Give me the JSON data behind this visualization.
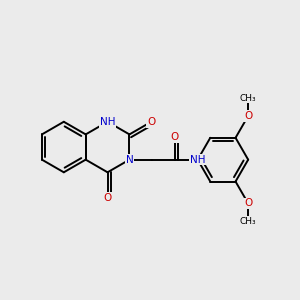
{
  "bg_color": "#ebebeb",
  "atom_color_N": "#0000cc",
  "atom_color_O": "#cc0000",
  "atom_color_C": "#000000",
  "bond_color": "#000000",
  "bond_width": 1.4,
  "font_size_atom": 7.5,
  "font_size_small": 6.5,
  "xlim": [
    0,
    10
  ],
  "ylim": [
    0,
    10
  ]
}
